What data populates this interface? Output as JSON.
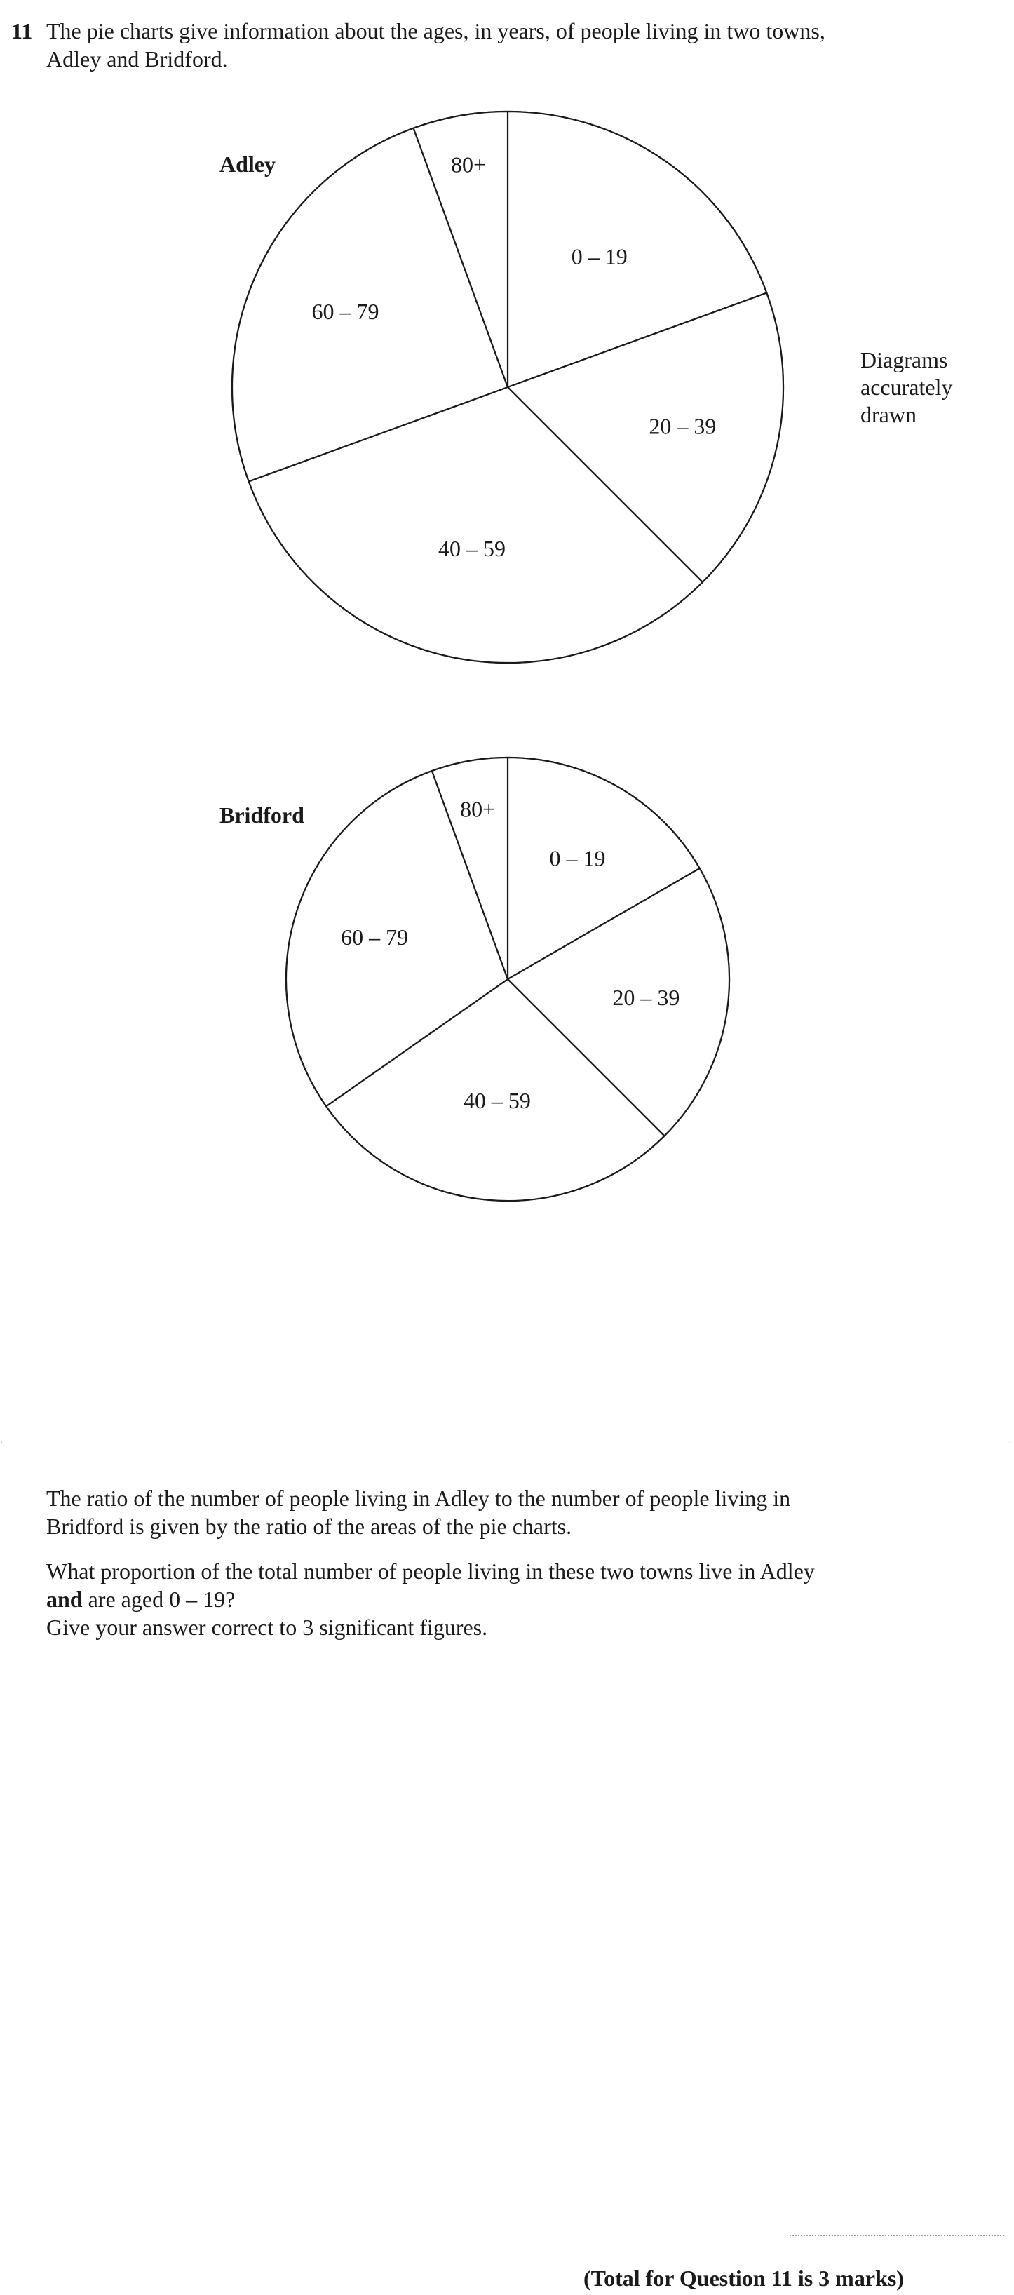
{
  "question": {
    "number": "11",
    "intro_line1": "The pie charts give information about the ages, in years, of people living in two towns,",
    "intro_line2": "Adley and Bridford."
  },
  "side_note": [
    "Diagrams",
    "accurately",
    "drawn"
  ],
  "chart_data": [
    {
      "type": "pie",
      "title": "Adley",
      "categories": [
        "0 – 19",
        "20 – 39",
        "40 – 59",
        "60 – 79",
        "80+"
      ],
      "values": [
        70,
        65,
        115,
        90,
        20
      ],
      "unit": "degrees"
    },
    {
      "type": "pie",
      "title": "Bridford",
      "categories": [
        "0 – 19",
        "20 – 39",
        "40 – 59",
        "60 – 79",
        "80+"
      ],
      "values": [
        60,
        75,
        100,
        105,
        20
      ],
      "unit": "degrees"
    }
  ],
  "paragraphs": {
    "ratio_line1": "The ratio of the number of people living in Adley to the number of people living in",
    "ratio_line2": "Bridford is given by the ratio of the areas of the pie charts.",
    "question_line1": "What proportion of the total number of people living in these two towns live in Adley",
    "question_bold": "and",
    "question_line2_rest": " are aged 0 – 19?",
    "question_line3": "Give your answer correct to 3 significant figures."
  },
  "total": "(Total for Question 11 is 3 marks)"
}
